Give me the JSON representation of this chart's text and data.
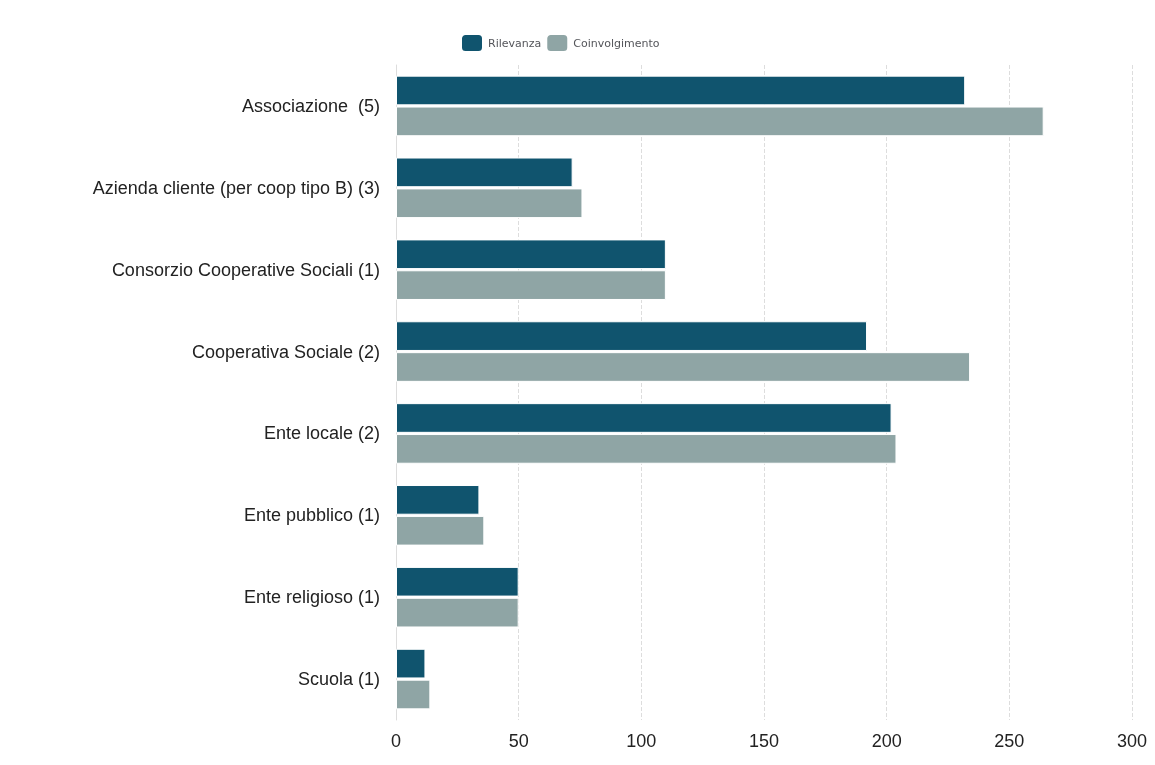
{
  "chart_data": {
    "type": "bar",
    "orientation": "horizontal",
    "categories": [
      "Associazione  (5)",
      "Azienda cliente (per coop tipo B) (3)",
      "Consorzio Cooperative Sociali (1)",
      "Cooperativa Sociale (2)",
      "Ente locale (2)",
      "Ente pubblico (1)",
      "Ente religioso (1)",
      "Scuola (1)"
    ],
    "series": [
      {
        "name": "Rilevanza",
        "color": "#10546e",
        "values": [
          232,
          72,
          110,
          192,
          202,
          34,
          50,
          12
        ]
      },
      {
        "name": "Coinvolgimento",
        "color": "#8fa5a5",
        "values": [
          264,
          76,
          110,
          234,
          204,
          36,
          50,
          14
        ]
      }
    ],
    "xlim": [
      0,
      300
    ],
    "xticks": [
      0,
      50,
      100,
      150,
      200,
      250,
      300
    ],
    "grid": "x",
    "legend": "top"
  }
}
